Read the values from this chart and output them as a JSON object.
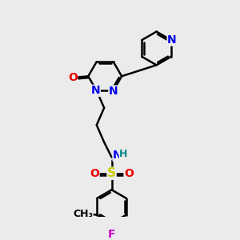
{
  "bg_color": "#ebebeb",
  "bond_color": "#000000",
  "bond_width": 1.8,
  "dbo": 0.08,
  "atom_colors": {
    "N": "#0000ee",
    "O": "#ee0000",
    "S": "#cccc00",
    "F": "#cc00cc",
    "H": "#008888",
    "C": "#000000"
  },
  "font_size": 10
}
